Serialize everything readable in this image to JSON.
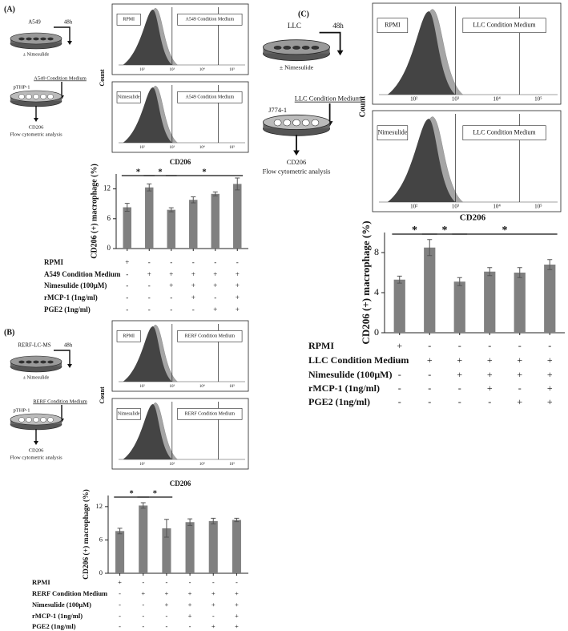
{
  "panels": [
    {
      "label": "(A)",
      "diagram": {
        "cells": "A549",
        "time": "48h",
        "treatment": "± Nimesulide",
        "medium": "A549 Condition Medium",
        "recipient": "pTHP-1",
        "marker": "CD206",
        "analysis": "Flow cytometric analysis"
      },
      "flow": {
        "y_label": "Count",
        "x_label": "CD206",
        "top_box": [
          "RPMI",
          "A549  Condition Medium"
        ],
        "bottom_box": [
          "Nimesulide",
          "A549  Condition Medium"
        ],
        "decades": [
          "10²",
          "10³",
          "10⁴",
          "10⁵"
        ]
      }
    },
    {
      "label": "(B)",
      "diagram": {
        "cells": "RERF-LC-MS",
        "time": "48h",
        "treatment": "± Nimesulide",
        "medium": "RERF Condition Medium",
        "recipient": "pTHP-1",
        "marker": "CD206",
        "analysis": "Flow cytometric analysis"
      },
      "flow": {
        "y_label": "Count",
        "x_label": "CD206",
        "top_box": [
          "RPMI",
          "RERF Condition Medium"
        ],
        "bottom_box": [
          "Nimesulide",
          "RERF  Condition Medium"
        ],
        "decades": [
          "10²",
          "10³",
          "10⁴",
          "10⁵"
        ]
      }
    },
    {
      "label": "(C)",
      "diagram": {
        "cells": "LLC",
        "time": "48h",
        "treatment": "± Nimesulide",
        "medium": "LLC Condition Medium",
        "recipient": "J774-1",
        "marker": "CD206",
        "analysis": "Flow cytometric analysis"
      },
      "flow": {
        "y_label": "Count",
        "x_label": "CD206",
        "top_box": [
          "RPMI",
          "LLC Condition Medium"
        ],
        "bottom_box": [
          "Nimesulide",
          "LLC  Condition Medium"
        ],
        "decades": [
          "10²",
          "10³",
          "10⁴",
          "10⁵"
        ]
      }
    }
  ],
  "chart_data": [
    {
      "type": "bar",
      "y_label": "CD206 (+) macrophage (%)",
      "categories": [
        null,
        null,
        null,
        null,
        null,
        null
      ],
      "values": [
        8.3,
        12.3,
        7.8,
        9.8,
        11,
        13
      ],
      "errors": [
        0.8,
        0.7,
        0.4,
        0.6,
        0.4,
        1.2
      ],
      "color": "#808080",
      "ylim": [
        0,
        15
      ],
      "yticks": [
        0,
        6,
        12
      ],
      "significance": [
        {
          "from": 0,
          "to": 1,
          "label": "*"
        },
        {
          "from": 1,
          "to": 2,
          "label": "*"
        },
        {
          "from": 2,
          "to": 5,
          "label": "*"
        }
      ],
      "conditions": [
        {
          "label": "RPMI",
          "signs": [
            "+",
            "-",
            "-",
            "-",
            "-",
            "-"
          ]
        },
        {
          "label": "A549 Condition Medium",
          "signs": [
            "-",
            "+",
            "+",
            "+",
            "+",
            "+"
          ]
        },
        {
          "label": "Nimesulide (100μM)",
          "signs": [
            "-",
            "-",
            "+",
            "+",
            "+",
            "+"
          ]
        },
        {
          "label": "rMCP-1 (1ng/ml)",
          "signs": [
            "-",
            "-",
            "-",
            "+",
            "-",
            "+"
          ]
        },
        {
          "label": "PGE2 (1ng/ml)",
          "signs": [
            "-",
            "-",
            "-",
            "-",
            "+",
            "+"
          ]
        }
      ]
    },
    {
      "type": "bar",
      "y_label": "CD206 (+) macrophage (%)",
      "categories": [
        null,
        null,
        null,
        null,
        null,
        null
      ],
      "values": [
        7.6,
        12.2,
        8.1,
        9.2,
        9.4,
        9.6
      ],
      "errors": [
        0.5,
        0.5,
        1.6,
        0.6,
        0.5,
        0.3
      ],
      "color": "#808080",
      "ylim": [
        0,
        14
      ],
      "yticks": [
        0,
        6,
        12
      ],
      "significance": [
        {
          "from": 0,
          "to": 1,
          "label": "*"
        },
        {
          "from": 1,
          "to": 2,
          "label": "*"
        }
      ],
      "conditions": [
        {
          "label": "RPMI",
          "signs": [
            "+",
            "-",
            "-",
            "-",
            "-",
            "-"
          ]
        },
        {
          "label": "RERF Condition Medium",
          "signs": [
            "-",
            "+",
            "+",
            "+",
            "+",
            "+"
          ]
        },
        {
          "label": "Nimesulide (100μM)",
          "signs": [
            "-",
            "-",
            "+",
            "+",
            "+",
            "+"
          ]
        },
        {
          "label": "rMCP-1 (1ng/ml)",
          "signs": [
            "-",
            "-",
            "-",
            "+",
            "-",
            "+"
          ]
        },
        {
          "label": "PGE2 (1ng/ml)",
          "signs": [
            "-",
            "-",
            "-",
            "-",
            "+",
            "+"
          ]
        }
      ]
    },
    {
      "type": "bar",
      "y_label": "CD206 (+) macrophage (%)",
      "categories": [
        null,
        null,
        null,
        null,
        null,
        null
      ],
      "values": [
        5.3,
        8.5,
        5.1,
        6.1,
        6.0,
        6.8
      ],
      "errors": [
        0.35,
        0.8,
        0.4,
        0.4,
        0.5,
        0.5
      ],
      "color": "#808080",
      "ylim": [
        0,
        10
      ],
      "yticks": [
        0,
        4,
        8
      ],
      "significance": [
        {
          "from": 0,
          "to": 1,
          "label": "*"
        },
        {
          "from": 1,
          "to": 2,
          "label": "*"
        },
        {
          "from": 2,
          "to": 5,
          "label": "*"
        }
      ],
      "conditions": [
        {
          "label": "RPMI",
          "signs": [
            "+",
            "-",
            "-",
            "-",
            "-",
            "-"
          ]
        },
        {
          "label": "LLC Condition Medium",
          "signs": [
            "-",
            "+",
            "+",
            "+",
            "+",
            "+"
          ]
        },
        {
          "label": "Nimesulide (100μM)",
          "signs": [
            "-",
            "-",
            "+",
            "+",
            "+",
            "+"
          ]
        },
        {
          "label": "rMCP-1 (1ng/ml)",
          "signs": [
            "-",
            "-",
            "-",
            "+",
            "-",
            "+"
          ]
        },
        {
          "label": "PGE2 (1ng/ml)",
          "signs": [
            "-",
            "-",
            "-",
            "-",
            "+",
            "+"
          ]
        }
      ]
    }
  ]
}
